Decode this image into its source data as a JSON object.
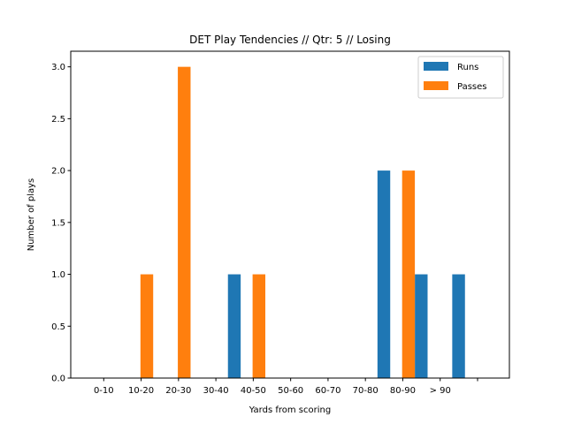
{
  "chart_data": {
    "type": "bar",
    "title": "DET Play Tendencies // Qtr: 5 // Losing",
    "xlabel": "Yards from scoring",
    "ylabel": "Number of plays",
    "categories": [
      "0-10",
      "10-20",
      "20-30",
      "30-40",
      "40-50",
      "50-60",
      "60-70",
      "70-80",
      "80-90",
      "> 90",
      ""
    ],
    "series": [
      {
        "name": "Runs",
        "color": "#1f77b4",
        "values": [
          0,
          0,
          0,
          1,
          0,
          0,
          0,
          2,
          1,
          1,
          0
        ]
      },
      {
        "name": "Passes",
        "color": "#ff7f0e",
        "values": [
          0,
          1,
          3,
          0,
          1,
          0,
          0,
          0,
          2,
          0,
          0
        ]
      }
    ],
    "ylim": [
      0,
      3.0
    ],
    "yticks": [
      "0.0",
      "0.5",
      "1.0",
      "1.5",
      "2.0",
      "2.5",
      "3.0"
    ],
    "grid": false,
    "legend_position": "top-right"
  }
}
